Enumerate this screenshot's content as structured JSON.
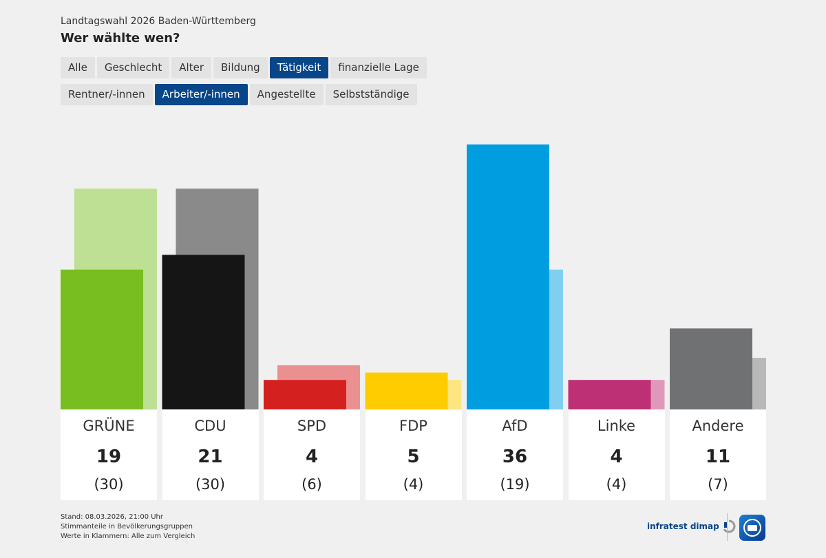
{
  "header": {
    "supertitle": "Landtagswahl 2026 Baden-Württemberg",
    "title": "Wer wählte wen?"
  },
  "filters": {
    "row1": [
      "Alle",
      "Geschlecht",
      "Alter",
      "Bildung",
      "Tätigkeit",
      "finanzielle Lage"
    ],
    "row1_active": "Tätigkeit",
    "row2": [
      "Rentner/-innen",
      "Arbeiter/-innen",
      "Angestellte",
      "Selbstständige"
    ],
    "row2_active": "Arbeiter/-innen"
  },
  "chart_data": {
    "type": "bar",
    "title": "Wer wählte wen?",
    "subtitle": "Stimmanteile in Bevölkerungsgruppen",
    "categories": [
      "GRÜNE",
      "CDU",
      "SPD",
      "FDP",
      "AfD",
      "Linke",
      "Andere"
    ],
    "series": [
      {
        "name": "Arbeiter/-innen",
        "values": [
          19,
          21,
          4,
          5,
          36,
          4,
          11
        ]
      },
      {
        "name": "Alle",
        "values": [
          30,
          30,
          6,
          4,
          19,
          4,
          7
        ]
      }
    ],
    "value_labels": [
      "19",
      "21",
      "4",
      "5",
      "36",
      "4",
      "11"
    ],
    "comparison_labels": [
      "(30)",
      "(30)",
      "(6)",
      "(4)",
      "(19)",
      "(4)",
      "(7)"
    ],
    "colors_main": [
      "#78be20",
      "#151515",
      "#d52020",
      "#ffcc00",
      "#009ee0",
      "#be3075",
      "#707173"
    ],
    "colors_compare": [
      "#bde094",
      "#8a8a8a",
      "#eb9090",
      "#ffe57f",
      "#80cff0",
      "#df98ba",
      "#b8b8b9"
    ],
    "ylim": [
      0,
      36
    ]
  },
  "footer": {
    "lines": [
      "Stand: 08.03.2026, 21:00 Uhr",
      "Stimmanteile in Bevölkerungsgruppen",
      "Werte in Klammern: Alle zum Vergleich"
    ],
    "source": "infratest dimap"
  }
}
